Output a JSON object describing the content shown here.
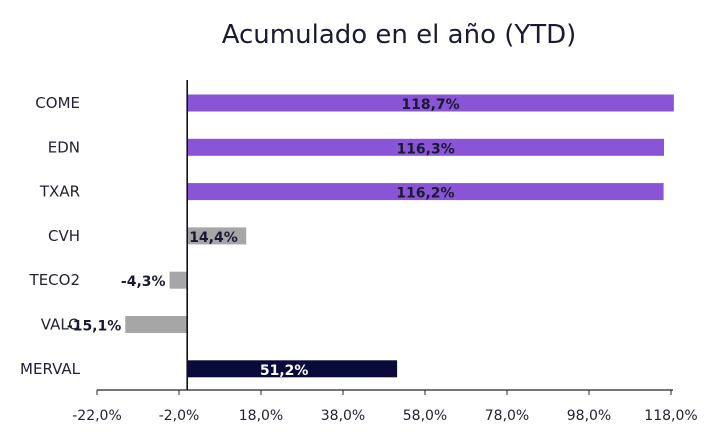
{
  "chart_data": {
    "type": "bar",
    "orientation": "horizontal",
    "title": "Acumulado en el año (YTD)",
    "categories": [
      "COME",
      "EDN",
      "TXAR",
      "CVH",
      "TECO2",
      "VALO",
      "MERVAL"
    ],
    "values": [
      118.7,
      116.3,
      116.2,
      14.4,
      -4.3,
      -15.1,
      51.2
    ],
    "data_labels": [
      "118,7%",
      "116,3%",
      "116,2%",
      "14,4%",
      "-4,3%",
      "-15,1%",
      "51,2%"
    ],
    "x_ticks": [
      -22,
      -2,
      18,
      38,
      58,
      78,
      98,
      118
    ],
    "x_tick_labels": [
      "-22,0%",
      "-2,0%",
      "18,0%",
      "38,0%",
      "58,0%",
      "78,0%",
      "98,0%",
      "118,0%"
    ],
    "xlim": [
      -22,
      118
    ],
    "grid": false,
    "legend": "none",
    "colors": [
      "#8a54d6",
      "#8a54d6",
      "#8a54d6",
      "#a6a6a6",
      "#a6a6a6",
      "#a6a6a6",
      "#0b0b3b"
    ],
    "label_colors": [
      "#1a1a33",
      "#1a1a33",
      "#1a1a33",
      "#1a1a33",
      "#1a1a33",
      "#1a1a33",
      "#ffffff"
    ]
  }
}
